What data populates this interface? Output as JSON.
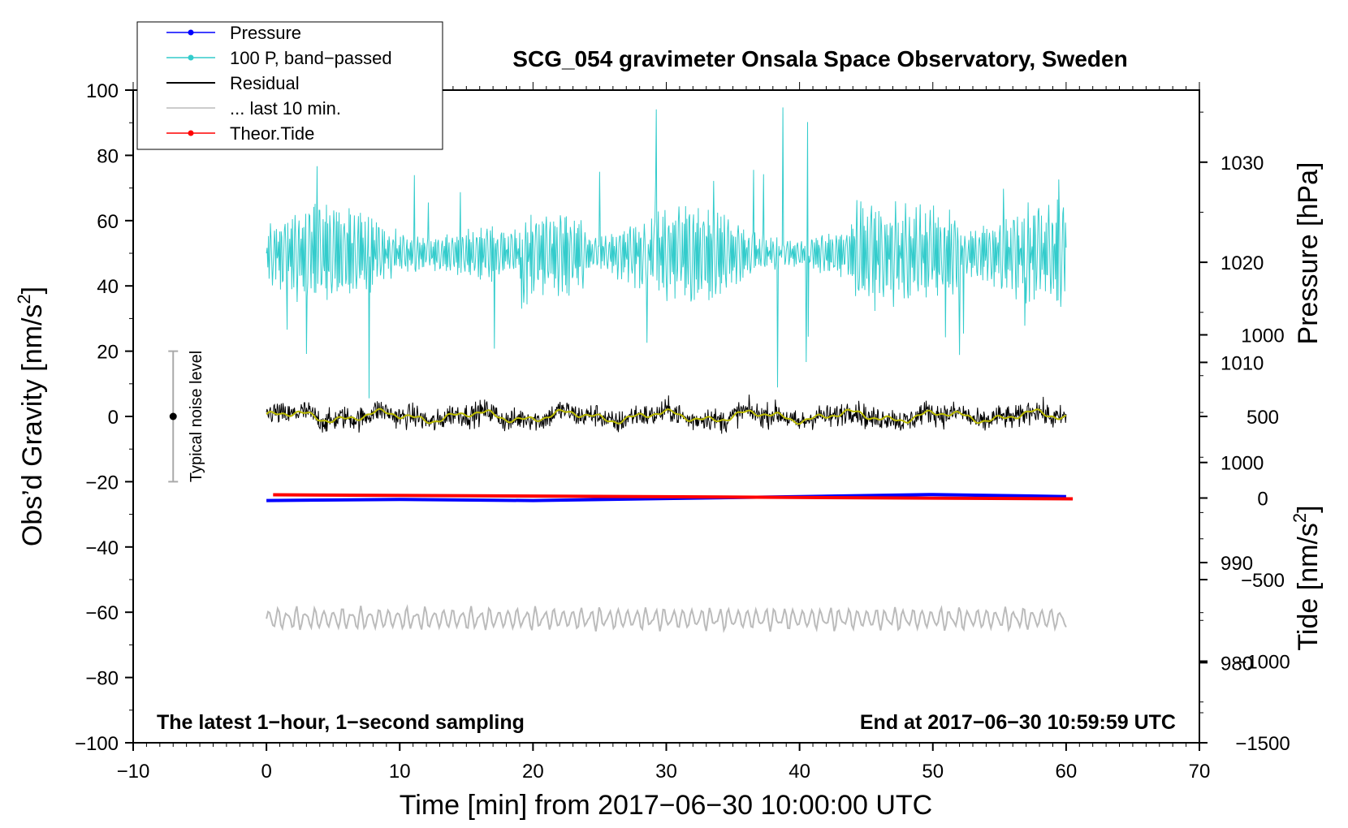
{
  "chart_data": {
    "type": "line",
    "title": "SCG_054 gravimeter Onsala Space Observatory, Sweden",
    "xlabel": "Time [min] from 2017−06−30 10:00:00 UTC",
    "ylabel": "Obs’d Gravity [nm/s",
    "ylabel_sup": "2",
    "ylabel_close": "]",
    "xlim": [
      -10,
      70
    ],
    "ylim": [
      -100,
      100
    ],
    "xticks": [
      -10,
      0,
      10,
      20,
      30,
      40,
      50,
      60,
      70
    ],
    "xtick_labels": [
      "−10",
      "0",
      "10",
      "20",
      "30",
      "40",
      "50",
      "60",
      "70"
    ],
    "yticks": [
      -100,
      -80,
      -60,
      -40,
      -20,
      0,
      20,
      40,
      60,
      80,
      100
    ],
    "ytick_labels": [
      "−100",
      "−80",
      "−60",
      "−40",
      "−20",
      "0",
      "20",
      "40",
      "60",
      "80",
      "100"
    ],
    "pressure_axis": {
      "label": "Pressure [hPa]",
      "ticks": [
        980,
        990,
        1000,
        1010,
        1020,
        1030
      ],
      "tick_labels": [
        "980",
        "990",
        "1000",
        "1010",
        "1020",
        "1030"
      ],
      "range": [
        972,
        1037.2
      ]
    },
    "tide_axis": {
      "label": "Tide [nm/s",
      "label_sup": "2",
      "label_close": "]",
      "ticks": [
        -1500,
        -1000,
        -500,
        0,
        500,
        1000
      ],
      "tick_labels": [
        "−1500",
        "−1000",
        "−500",
        "0",
        "500",
        "1000"
      ],
      "range": [
        -1500,
        2500
      ]
    },
    "legend": {
      "position": "top-left",
      "entries": [
        {
          "label": "Pressure",
          "color": "#0000ff",
          "marker": true
        },
        {
          "label": "100 P, band−passed",
          "color": "#33cccc",
          "marker": true
        },
        {
          "label": "Residual",
          "color": "#000000",
          "marker": false
        },
        {
          "label": "... last 10 min.",
          "color": "#bbbbbb",
          "marker": false
        },
        {
          "label": "Theor.Tide",
          "color": "#ff0000",
          "marker": true
        }
      ]
    },
    "noise_bar": {
      "label": "Typical noise level",
      "x": -7,
      "center": 0,
      "low": -20,
      "high": 20
    },
    "note_left": "The latest 1−hour, 1−second sampling",
    "note_right": "End at 2017−06−30 10:59:59 UTC",
    "series": [
      {
        "name": "Pressure",
        "color": "#0000ff",
        "axis": "pressure",
        "x": [
          0,
          10,
          20,
          30,
          40,
          50,
          60
        ],
        "values": [
          996.2,
          996.3,
          996.2,
          996.4,
          996.6,
          996.8,
          996.6
        ]
      },
      {
        "name": "100 P, band-passed",
        "color": "#33cccc",
        "axis": "gravity",
        "x_range": [
          0,
          60
        ],
        "center": 50,
        "amplitude": 8
      },
      {
        "name": "Residual",
        "color": "#000000",
        "axis": "gravity",
        "x_range": [
          0,
          60
        ],
        "center": 0,
        "amplitude": 3
      },
      {
        "name": "Residual smoothed",
        "color": "#bbbb00",
        "axis": "gravity",
        "x_range": [
          0,
          60
        ],
        "center": 0,
        "amplitude": 1.5
      },
      {
        "name": "... last 10 min.",
        "color": "#bbbbbb",
        "axis": "gravity",
        "x_range": [
          0,
          60
        ],
        "center": -62,
        "amplitude": 2.5
      },
      {
        "name": "Theor.Tide",
        "color": "#ff0000",
        "axis": "tide",
        "x": [
          0.5,
          60.5
        ],
        "values": [
          20,
          -5
        ]
      }
    ]
  }
}
